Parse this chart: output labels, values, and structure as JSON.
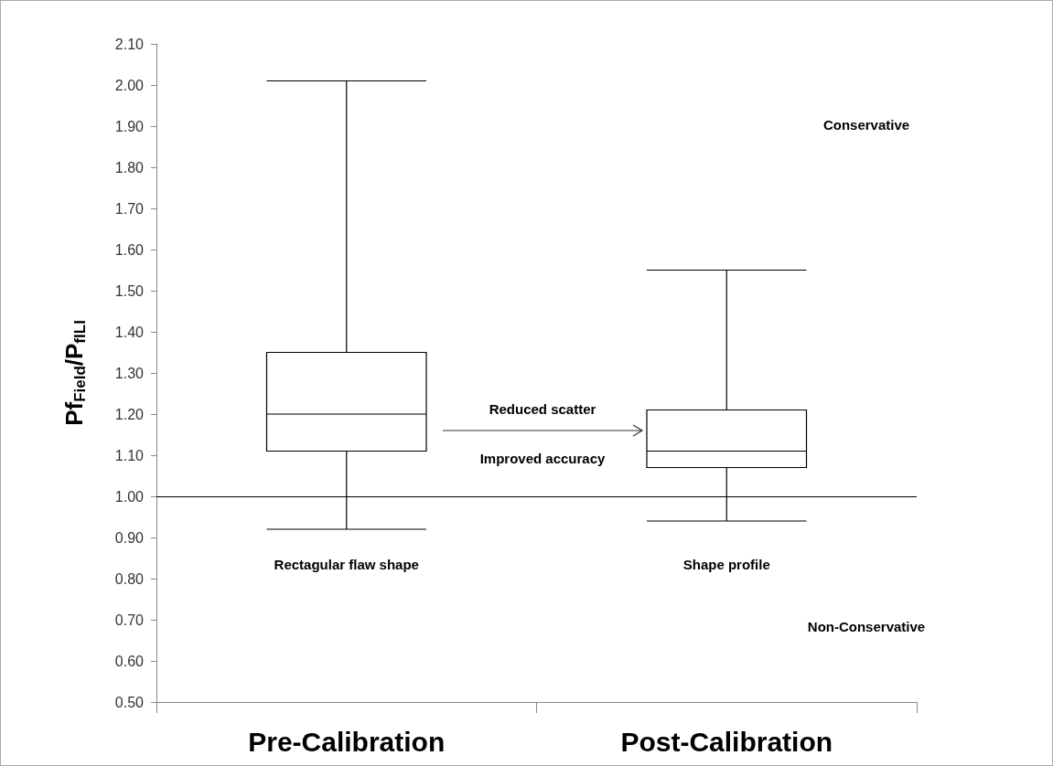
{
  "chart_data": {
    "type": "box",
    "ylabel": "Pf$_{Field}$/P$_{fILI}$",
    "categories": [
      "Pre-Calibration",
      "Post-Calibration"
    ],
    "boxes": [
      {
        "low": 0.92,
        "q1": 1.11,
        "median": 1.2,
        "q3": 1.35,
        "high": 2.01
      },
      {
        "low": 0.94,
        "q1": 1.07,
        "median": 1.11,
        "q3": 1.21,
        "high": 1.55
      }
    ],
    "color": "#000000",
    "ylim": [
      0.5,
      2.1
    ],
    "yticks": [
      {
        "value": 0.5,
        "label": "0.50"
      },
      {
        "value": 0.6,
        "label": "0.60"
      },
      {
        "value": 0.7,
        "label": "0.70"
      },
      {
        "value": 0.8,
        "label": "0.80"
      },
      {
        "value": 0.9,
        "label": "0.90"
      },
      {
        "value": 1.0,
        "label": "1.00"
      },
      {
        "value": 1.1,
        "label": "1.10"
      },
      {
        "value": 1.2,
        "label": "1.20"
      },
      {
        "value": 1.3,
        "label": "1.30"
      },
      {
        "value": 1.4,
        "label": "1.40"
      },
      {
        "value": 1.5,
        "label": "1.50"
      },
      {
        "value": 1.6,
        "label": "1.60"
      },
      {
        "value": 1.7,
        "label": "1.70"
      },
      {
        "value": 1.8,
        "label": "1.80"
      },
      {
        "value": 1.9,
        "label": "1.90"
      },
      {
        "value": 2.0,
        "label": "2.00"
      },
      {
        "value": 2.1,
        "label": "2.10"
      }
    ],
    "ref_lines": [
      {
        "axis": "y",
        "value": 1.0,
        "color": "#000000"
      }
    ],
    "annotations": [
      "Rectagular flaw shape",
      "Shape profile",
      "Reduced scatter",
      "Improved accuracy",
      "Conservative",
      "Non-Conservative"
    ],
    "grid": false
  }
}
